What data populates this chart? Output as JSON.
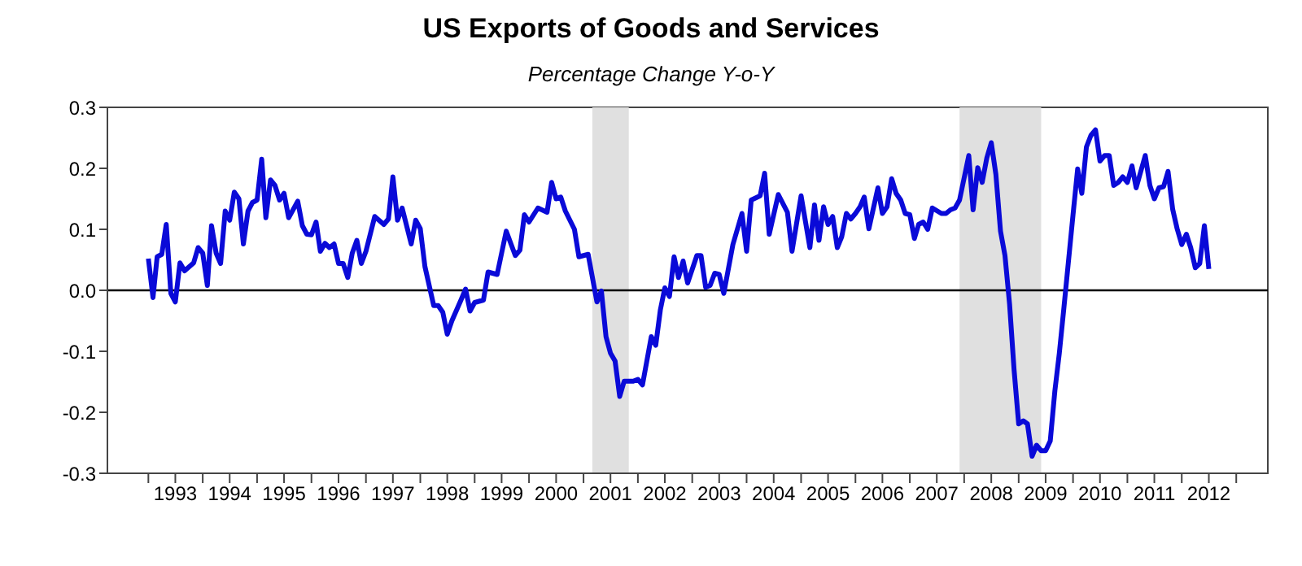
{
  "chart_data": {
    "type": "line",
    "title": "US Exports of Goods and Services",
    "subtitle": "Percentage Change Y-o-Y",
    "x": [
      "1993-01",
      "1993-02",
      "1993-03",
      "1993-04",
      "1993-05",
      "1993-06",
      "1993-07",
      "1993-08",
      "1993-09",
      "1993-11",
      "1993-12",
      "1994-01",
      "1994-02",
      "1994-03",
      "1994-04",
      "1994-05",
      "1994-06",
      "1994-07",
      "1994-08",
      "1994-09",
      "1994-10",
      "1994-11",
      "1994-12",
      "1995-01",
      "1995-02",
      "1995-03",
      "1995-04",
      "1995-05",
      "1995-06",
      "1995-07",
      "1995-08",
      "1995-10",
      "1995-11",
      "1995-12",
      "1996-01",
      "1996-02",
      "1996-03",
      "1996-04",
      "1996-05",
      "1996-06",
      "1996-07",
      "1996-08",
      "1996-09",
      "1996-10",
      "1996-11",
      "1996-12",
      "1997-01",
      "1997-03",
      "1997-05",
      "1997-06",
      "1997-07",
      "1997-08",
      "1997-09",
      "1997-11",
      "1997-12",
      "1998-01",
      "1998-02",
      "1998-04",
      "1998-05",
      "1998-06",
      "1998-07",
      "1998-08",
      "1998-10",
      "1998-11",
      "1998-12",
      "1999-01",
      "1999-03",
      "1999-04",
      "1999-06",
      "1999-08",
      "1999-10",
      "1999-11",
      "1999-12",
      "2000-01",
      "2000-03",
      "2000-05",
      "2000-06",
      "2000-07",
      "2000-08",
      "2000-09",
      "2000-11",
      "2000-12",
      "2001-02",
      "2001-04",
      "2001-05",
      "2001-06",
      "2001-07",
      "2001-08",
      "2001-09",
      "2001-10",
      "2001-12",
      "2002-01",
      "2002-02",
      "2002-04",
      "2002-05",
      "2002-06",
      "2002-07",
      "2002-08",
      "2002-09",
      "2002-10",
      "2002-11",
      "2002-12",
      "2003-02",
      "2003-03",
      "2003-04",
      "2003-05",
      "2003-06",
      "2003-07",
      "2003-08",
      "2003-10",
      "2003-12",
      "2004-01",
      "2004-02",
      "2004-04",
      "2004-05",
      "2004-06",
      "2004-08",
      "2004-10",
      "2004-11",
      "2005-01",
      "2005-03",
      "2005-04",
      "2005-05",
      "2005-06",
      "2005-07",
      "2005-08",
      "2005-09",
      "2005-10",
      "2005-11",
      "2005-12",
      "2006-01",
      "2006-02",
      "2006-03",
      "2006-04",
      "2006-06",
      "2006-07",
      "2006-08",
      "2006-09",
      "2006-10",
      "2006-11",
      "2006-12",
      "2007-01",
      "2007-02",
      "2007-03",
      "2007-04",
      "2007-05",
      "2007-06",
      "2007-08",
      "2007-09",
      "2007-10",
      "2007-11",
      "2007-12",
      "2008-02",
      "2008-03",
      "2008-04",
      "2008-05",
      "2008-06",
      "2008-07",
      "2008-08",
      "2008-09",
      "2008-10",
      "2008-11",
      "2008-12",
      "2009-01",
      "2009-02",
      "2009-03",
      "2009-04",
      "2009-05",
      "2009-06",
      "2009-07",
      "2009-08",
      "2009-09",
      "2009-10",
      "2009-11",
      "2010-01",
      "2010-02",
      "2010-03",
      "2010-04",
      "2010-05",
      "2010-06",
      "2010-07",
      "2010-08",
      "2010-09",
      "2010-10",
      "2010-11",
      "2010-12",
      "2011-01",
      "2011-02",
      "2011-03",
      "2011-04",
      "2011-05",
      "2011-06",
      "2011-07",
      "2011-08",
      "2011-09",
      "2011-10",
      "2011-11",
      "2011-12",
      "2012-01",
      "2012-02",
      "2012-03",
      "2012-04",
      "2012-05",
      "2012-06",
      "2012-07"
    ],
    "series": [
      {
        "color": "#0a0ad8",
        "values": [
          0.052,
          -0.012,
          0.055,
          0.059,
          0.108,
          -0.005,
          -0.019,
          0.045,
          0.032,
          0.045,
          0.07,
          0.061,
          0.008,
          0.106,
          0.061,
          0.044,
          0.13,
          0.115,
          0.161,
          0.15,
          0.076,
          0.13,
          0.144,
          0.148,
          0.215,
          0.119,
          0.181,
          0.172,
          0.148,
          0.159,
          0.119,
          0.146,
          0.106,
          0.092,
          0.091,
          0.112,
          0.064,
          0.077,
          0.07,
          0.076,
          0.044,
          0.044,
          0.021,
          0.061,
          0.082,
          0.044,
          0.064,
          0.121,
          0.108,
          0.117,
          0.186,
          0.115,
          0.135,
          0.076,
          0.115,
          0.101,
          0.039,
          -0.025,
          -0.025,
          -0.036,
          -0.072,
          -0.05,
          -0.016,
          0.002,
          -0.034,
          -0.02,
          -0.016,
          0.03,
          0.026,
          0.097,
          0.057,
          0.066,
          0.124,
          0.112,
          0.135,
          0.128,
          0.177,
          0.15,
          0.153,
          0.13,
          0.1,
          0.055,
          0.059,
          -0.019,
          -0.001,
          -0.076,
          -0.103,
          -0.116,
          -0.174,
          -0.149,
          -0.149,
          -0.146,
          -0.155,
          -0.076,
          -0.09,
          -0.032,
          0.004,
          -0.01,
          0.055,
          0.021,
          0.048,
          0.012,
          0.057,
          0.057,
          0.005,
          0.008,
          0.028,
          0.026,
          -0.005,
          0.075,
          0.126,
          0.064,
          0.148,
          0.155,
          0.192,
          0.092,
          0.157,
          0.128,
          0.064,
          0.155,
          0.07,
          0.14,
          0.082,
          0.137,
          0.108,
          0.121,
          0.07,
          0.088,
          0.126,
          0.117,
          0.126,
          0.137,
          0.153,
          0.101,
          0.168,
          0.126,
          0.137,
          0.183,
          0.159,
          0.148,
          0.126,
          0.124,
          0.085,
          0.108,
          0.112,
          0.1,
          0.135,
          0.126,
          0.126,
          0.132,
          0.135,
          0.148,
          0.221,
          0.132,
          0.201,
          0.177,
          0.217,
          0.242,
          0.19,
          0.097,
          0.057,
          -0.023,
          -0.13,
          -0.219,
          -0.214,
          -0.219,
          -0.272,
          -0.254,
          -0.263,
          -0.263,
          -0.247,
          -0.165,
          -0.103,
          -0.028,
          0.124,
          0.199,
          0.159,
          0.235,
          0.254,
          0.263,
          0.212,
          0.221,
          0.221,
          0.172,
          0.177,
          0.186,
          0.177,
          0.204,
          0.168,
          0.195,
          0.221,
          0.172,
          0.15,
          0.168,
          0.17,
          0.195,
          0.133,
          0.101,
          0.075,
          0.092,
          0.07,
          0.037,
          0.044,
          0.106,
          0.035
        ]
      }
    ],
    "xlim": [
      "1992-04",
      "2013-08"
    ],
    "xticks": [
      {
        "value": "1993-01",
        "label": null
      },
      {
        "value": "1993-07",
        "label": "1993"
      },
      {
        "value": "1994-01",
        "label": null
      },
      {
        "value": "1994-07",
        "label": "1994"
      },
      {
        "value": "1995-01",
        "label": null
      },
      {
        "value": "1995-07",
        "label": "1995"
      },
      {
        "value": "1996-01",
        "label": null
      },
      {
        "value": "1996-07",
        "label": "1996"
      },
      {
        "value": "1997-01",
        "label": null
      },
      {
        "value": "1997-07",
        "label": "1997"
      },
      {
        "value": "1998-01",
        "label": null
      },
      {
        "value": "1998-07",
        "label": "1998"
      },
      {
        "value": "1999-01",
        "label": null
      },
      {
        "value": "1999-07",
        "label": "1999"
      },
      {
        "value": "2000-01",
        "label": null
      },
      {
        "value": "2000-07",
        "label": "2000"
      },
      {
        "value": "2001-01",
        "label": null
      },
      {
        "value": "2001-07",
        "label": "2001"
      },
      {
        "value": "2002-01",
        "label": null
      },
      {
        "value": "2002-07",
        "label": "2002"
      },
      {
        "value": "2003-01",
        "label": null
      },
      {
        "value": "2003-07",
        "label": "2003"
      },
      {
        "value": "2004-01",
        "label": null
      },
      {
        "value": "2004-07",
        "label": "2004"
      },
      {
        "value": "2005-01",
        "label": null
      },
      {
        "value": "2005-07",
        "label": "2005"
      },
      {
        "value": "2006-01",
        "label": null
      },
      {
        "value": "2006-07",
        "label": "2006"
      },
      {
        "value": "2007-01",
        "label": null
      },
      {
        "value": "2007-07",
        "label": "2007"
      },
      {
        "value": "2008-01",
        "label": null
      },
      {
        "value": "2008-07",
        "label": "2008"
      },
      {
        "value": "2009-01",
        "label": null
      },
      {
        "value": "2009-07",
        "label": "2009"
      },
      {
        "value": "2010-01",
        "label": null
      },
      {
        "value": "2010-07",
        "label": "2010"
      },
      {
        "value": "2011-01",
        "label": null
      },
      {
        "value": "2011-07",
        "label": "2011"
      },
      {
        "value": "2012-01",
        "label": null
      },
      {
        "value": "2012-07",
        "label": "2012"
      },
      {
        "value": "2013-01",
        "label": null
      }
    ],
    "ylim": [
      -0.3,
      0.3
    ],
    "yticks": [
      -0.3,
      -0.2,
      -0.1,
      {
        "value": 0,
        "label": "0.0"
      },
      0.1,
      0.2,
      0.3
    ],
    "ref_lines": [
      {
        "axis": "y",
        "value": 0,
        "color": "#000000"
      }
    ],
    "bands": [
      {
        "axis": "x",
        "from": "2001-03",
        "to": "2001-11",
        "color": "#e0e0e0"
      },
      {
        "axis": "x",
        "from": "2007-12",
        "to": "2009-06",
        "color": "#e0e0e0"
      }
    ],
    "marker": "none",
    "line_style": "solid"
  }
}
